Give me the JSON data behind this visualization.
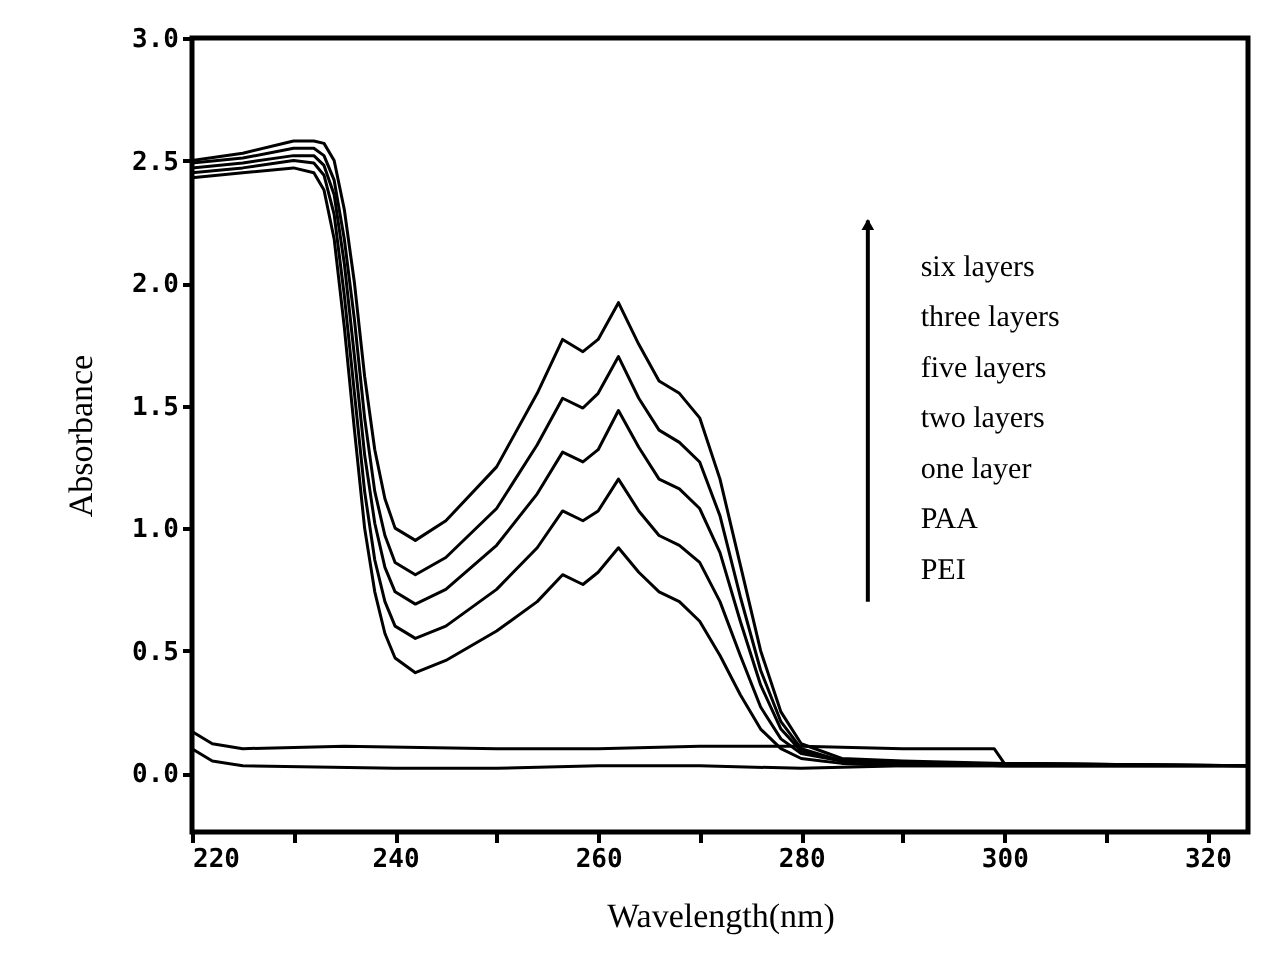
{
  "chart_data": {
    "type": "line",
    "xlabel": "Wavelength(nm)",
    "ylabel": "Absorbance",
    "xlim": [
      220,
      324
    ],
    "ylim": [
      -0.24,
      3.0
    ],
    "xticks": [
      220,
      {
        "value": 230,
        "label": null
      },
      240,
      {
        "value": 250,
        "label": null
      },
      260,
      {
        "value": 270,
        "label": null
      },
      280,
      {
        "value": 290,
        "label": null
      },
      300,
      {
        "value": 310,
        "label": null
      },
      320
    ],
    "yticks": [
      {
        "value": 0,
        "label": "0.0"
      },
      0.5,
      {
        "value": 1,
        "label": "1.0"
      },
      1.5,
      {
        "value": 2,
        "label": "2.0"
      },
      2.5,
      {
        "value": 3,
        "label": "3.0"
      }
    ],
    "grid": false,
    "marker": "none",
    "line_style": "solid",
    "x": [
      220,
      225,
      230,
      232,
      233,
      234,
      235,
      236,
      237,
      238,
      239,
      240,
      242,
      245,
      250,
      254,
      256.5,
      258.5,
      260,
      262,
      264,
      266,
      268,
      270,
      272,
      274,
      276,
      278,
      280,
      284,
      290,
      300,
      324
    ],
    "series": [
      {
        "color": "#000000",
        "values": [
          2.5,
          2.53,
          2.58,
          2.58,
          2.57,
          2.5,
          2.3,
          2.0,
          1.62,
          1.32,
          1.12,
          1.0,
          0.95,
          1.03,
          1.25,
          1.55,
          1.77,
          1.72,
          1.77,
          1.92,
          1.75,
          1.6,
          1.55,
          1.45,
          1.2,
          0.85,
          0.5,
          0.25,
          0.12,
          0.06,
          0.05,
          0.04,
          0.03
        ]
      },
      {
        "color": "#000000",
        "values": [
          2.49,
          2.51,
          2.55,
          2.55,
          2.52,
          2.42,
          2.18,
          1.85,
          1.45,
          1.15,
          0.97,
          0.86,
          0.81,
          0.88,
          1.08,
          1.34,
          1.53,
          1.49,
          1.55,
          1.7,
          1.53,
          1.4,
          1.35,
          1.27,
          1.05,
          0.72,
          0.42,
          0.21,
          0.1,
          0.05,
          0.04,
          0.04,
          0.03
        ]
      },
      {
        "color": "#000000",
        "values": [
          2.47,
          2.49,
          2.52,
          2.52,
          2.48,
          2.36,
          2.08,
          1.7,
          1.3,
          1.02,
          0.84,
          0.74,
          0.69,
          0.75,
          0.93,
          1.14,
          1.31,
          1.27,
          1.32,
          1.48,
          1.33,
          1.2,
          1.16,
          1.08,
          0.9,
          0.62,
          0.36,
          0.18,
          0.09,
          0.05,
          0.04,
          0.03,
          0.03
        ]
      },
      {
        "color": "#000000",
        "values": [
          2.45,
          2.47,
          2.5,
          2.49,
          2.44,
          2.28,
          1.95,
          1.55,
          1.15,
          0.87,
          0.7,
          0.6,
          0.55,
          0.6,
          0.75,
          0.92,
          1.07,
          1.03,
          1.07,
          1.2,
          1.07,
          0.97,
          0.93,
          0.86,
          0.7,
          0.48,
          0.27,
          0.14,
          0.08,
          0.05,
          0.04,
          0.03,
          0.03
        ]
      },
      {
        "color": "#000000",
        "values": [
          2.43,
          2.45,
          2.47,
          2.45,
          2.38,
          2.18,
          1.82,
          1.4,
          1.0,
          0.74,
          0.57,
          0.47,
          0.41,
          0.46,
          0.58,
          0.7,
          0.81,
          0.77,
          0.82,
          0.92,
          0.82,
          0.74,
          0.7,
          0.62,
          0.48,
          0.32,
          0.18,
          0.1,
          0.06,
          0.04,
          0.03,
          0.03,
          0.03
        ]
      },
      {
        "color": "#000000",
        "x": [
          220,
          222,
          225,
          235,
          250,
          260,
          270,
          280,
          290,
          299,
          300,
          324
        ],
        "values": [
          0.17,
          0.12,
          0.1,
          0.11,
          0.1,
          0.1,
          0.11,
          0.11,
          0.1,
          0.1,
          0.04,
          0.03
        ]
      },
      {
        "color": "#000000",
        "x": [
          220,
          222,
          225,
          240,
          250,
          260,
          270,
          280,
          290,
          300,
          324
        ],
        "values": [
          0.1,
          0.05,
          0.03,
          0.02,
          0.02,
          0.03,
          0.03,
          0.02,
          0.03,
          0.03,
          0.03
        ]
      }
    ],
    "annotations": [
      "six layers",
      "three layers",
      "five layers",
      "two layers",
      "one layer",
      "PAA",
      "PEI"
    ]
  }
}
